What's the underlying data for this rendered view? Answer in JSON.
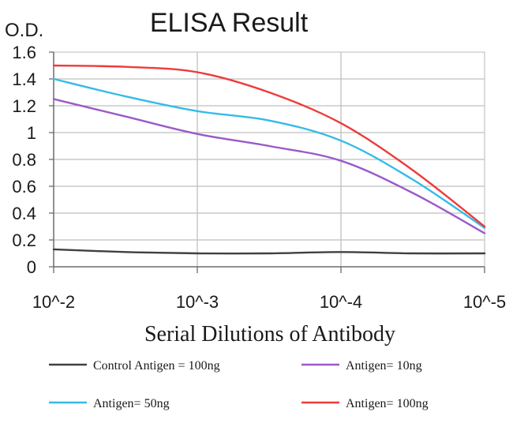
{
  "chart_data": {
    "type": "line",
    "title": "ELISA Result",
    "ylabel": "O.D.",
    "xlabel": "Serial Dilutions of Antibody",
    "categories": [
      "10^-2",
      "10^-3",
      "10^-4",
      "10^-5"
    ],
    "y_ticks": [
      "0",
      "0.2",
      "0.4",
      "0.6",
      "0.8",
      "1",
      "1.2",
      "1.4",
      "1.6"
    ],
    "ylim": [
      0,
      1.6
    ],
    "grid": true,
    "legend_position": "bottom",
    "series": [
      {
        "name": "Control Antigen = 100ng",
        "color": "#404040",
        "points": [
          [
            0,
            0.13
          ],
          [
            0.5,
            0.11
          ],
          [
            1,
            0.1
          ],
          [
            1.5,
            0.1
          ],
          [
            2,
            0.11
          ],
          [
            2.5,
            0.1
          ],
          [
            3,
            0.1
          ]
        ]
      },
      {
        "name": "Antigen= 10ng",
        "color": "#9b59c9",
        "points": [
          [
            0,
            1.25
          ],
          [
            0.5,
            1.12
          ],
          [
            1,
            0.99
          ],
          [
            1.5,
            0.9
          ],
          [
            2,
            0.79
          ],
          [
            2.5,
            0.55
          ],
          [
            3,
            0.25
          ]
        ]
      },
      {
        "name": "Antigen= 50ng",
        "color": "#33bbe8",
        "points": [
          [
            0,
            1.4
          ],
          [
            0.5,
            1.27
          ],
          [
            1,
            1.16
          ],
          [
            1.5,
            1.09
          ],
          [
            2,
            0.94
          ],
          [
            2.5,
            0.65
          ],
          [
            3,
            0.29
          ]
        ]
      },
      {
        "name": "Antigen= 100ng",
        "color": "#ee3b3b",
        "points": [
          [
            0,
            1.5
          ],
          [
            0.5,
            1.49
          ],
          [
            1,
            1.45
          ],
          [
            1.5,
            1.3
          ],
          [
            2,
            1.07
          ],
          [
            2.5,
            0.72
          ],
          [
            3,
            0.3
          ]
        ]
      }
    ]
  }
}
